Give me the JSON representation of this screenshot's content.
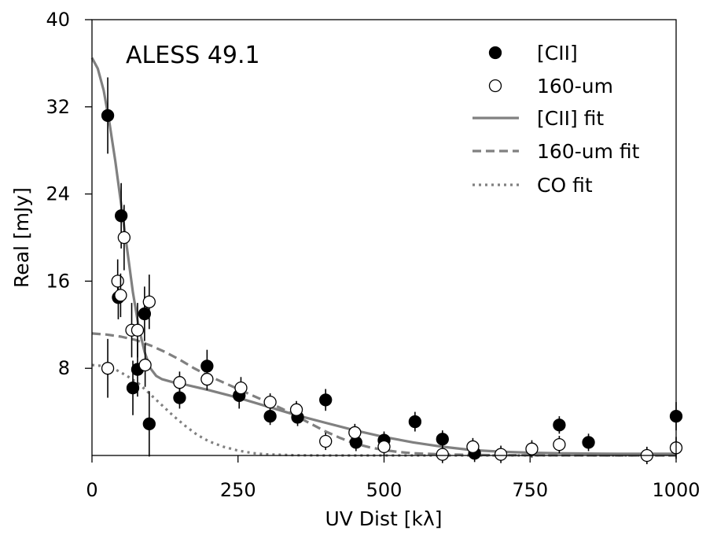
{
  "chart_data": {
    "type": "scatter",
    "annotation": "ALESS 49.1",
    "xlabel": "UV Dist [kλ]",
    "ylabel": "Real [mJy]",
    "xlim": [
      0,
      1000
    ],
    "ylim": [
      0,
      40
    ],
    "xticks": [
      0,
      250,
      500,
      750,
      1000
    ],
    "yticks": [
      8,
      16,
      24,
      32,
      40
    ],
    "legend": {
      "position": "top-right",
      "entries": [
        {
          "label": "[CII]",
          "kind": "filled-marker"
        },
        {
          "label": "160-um",
          "kind": "open-marker"
        },
        {
          "label": "[CII] fit",
          "kind": "solid-line"
        },
        {
          "label": "160-um fit",
          "kind": "dashed-line"
        },
        {
          "label": "CO fit",
          "kind": "dotted-line"
        }
      ]
    },
    "colors": {
      "fit_line": "#808080",
      "marker": "#000000"
    },
    "series": [
      {
        "name": "[CII]",
        "style": "filled",
        "points": [
          {
            "x": 27,
            "y": 31.2,
            "err": 3.5
          },
          {
            "x": 45,
            "y": 14.5,
            "err": 2.0
          },
          {
            "x": 50,
            "y": 22.0,
            "err": 3.0
          },
          {
            "x": 70,
            "y": 6.2,
            "err": 2.5
          },
          {
            "x": 78,
            "y": 7.9,
            "err": 2.5
          },
          {
            "x": 90,
            "y": 13.0,
            "err": 2.5
          },
          {
            "x": 98,
            "y": 2.9,
            "err": 3.0
          },
          {
            "x": 150,
            "y": 5.3,
            "err": 1.0
          },
          {
            "x": 197,
            "y": 8.2,
            "err": 1.5
          },
          {
            "x": 252,
            "y": 5.5,
            "err": 1.2
          },
          {
            "x": 305,
            "y": 3.6,
            "err": 0.8
          },
          {
            "x": 352,
            "y": 3.5,
            "err": 0.8
          },
          {
            "x": 400,
            "y": 5.1,
            "err": 1.0
          },
          {
            "x": 452,
            "y": 1.2,
            "err": 0.8
          },
          {
            "x": 500,
            "y": 1.4,
            "err": 0.8
          },
          {
            "x": 553,
            "y": 3.1,
            "err": 0.9
          },
          {
            "x": 600,
            "y": 1.5,
            "err": 0.8
          },
          {
            "x": 655,
            "y": 0.2,
            "err": 0.8
          },
          {
            "x": 800,
            "y": 2.8,
            "err": 0.8
          },
          {
            "x": 850,
            "y": 1.2,
            "err": 0.8
          },
          {
            "x": 1000,
            "y": 3.6,
            "err": 1.3
          }
        ]
      },
      {
        "name": "160-um",
        "style": "open",
        "points": [
          {
            "x": 27,
            "y": 8.0,
            "err": 2.7
          },
          {
            "x": 44,
            "y": 16.0,
            "err": 2.0
          },
          {
            "x": 49,
            "y": 14.7,
            "err": 2.0
          },
          {
            "x": 55,
            "y": 20.0,
            "err": 3.0
          },
          {
            "x": 68,
            "y": 11.5,
            "err": 2.5
          },
          {
            "x": 78,
            "y": 11.5,
            "err": 2.5
          },
          {
            "x": 91,
            "y": 8.3,
            "err": 2.0
          },
          {
            "x": 98,
            "y": 14.1,
            "err": 2.5
          },
          {
            "x": 150,
            "y": 6.7,
            "err": 1.0
          },
          {
            "x": 197,
            "y": 7.0,
            "err": 1.0
          },
          {
            "x": 255,
            "y": 6.2,
            "err": 1.0
          },
          {
            "x": 305,
            "y": 4.9,
            "err": 0.8
          },
          {
            "x": 350,
            "y": 4.2,
            "err": 0.8
          },
          {
            "x": 400,
            "y": 1.3,
            "err": 0.8
          },
          {
            "x": 450,
            "y": 2.1,
            "err": 0.8
          },
          {
            "x": 500,
            "y": 0.8,
            "err": 0.8
          },
          {
            "x": 600,
            "y": 0.1,
            "err": 0.8
          },
          {
            "x": 652,
            "y": 0.8,
            "err": 0.8
          },
          {
            "x": 700,
            "y": 0.1,
            "err": 0.8
          },
          {
            "x": 753,
            "y": 0.6,
            "err": 0.8
          },
          {
            "x": 800,
            "y": 1.0,
            "err": 0.8
          },
          {
            "x": 950,
            "y": 0.0,
            "err": 0.8
          },
          {
            "x": 1000,
            "y": 0.7,
            "err": 1.0
          }
        ]
      }
    ],
    "fits": [
      {
        "name": "[CII] fit",
        "style": "solid",
        "x": [
          0,
          10,
          20,
          30,
          40,
          50,
          60,
          70,
          80,
          90,
          100,
          110,
          120,
          140,
          160,
          200,
          250,
          300,
          350,
          400,
          450,
          500,
          550,
          600,
          650,
          700,
          750,
          800,
          900,
          1000
        ],
        "y": [
          36.5,
          35.5,
          33.5,
          30.5,
          27.0,
          23.0,
          19.0,
          15.0,
          11.8,
          9.5,
          8.0,
          7.3,
          7.0,
          6.7,
          6.5,
          6.0,
          5.3,
          4.5,
          3.7,
          3.0,
          2.3,
          1.7,
          1.2,
          0.8,
          0.5,
          0.35,
          0.25,
          0.2,
          0.15,
          0.15
        ]
      },
      {
        "name": "160-um fit",
        "style": "dashed",
        "x": [
          0,
          25,
          50,
          75,
          100,
          125,
          150,
          175,
          200,
          225,
          250,
          275,
          300,
          325,
          350,
          375,
          400,
          425,
          450,
          475,
          500,
          525,
          550,
          600,
          650,
          700,
          750,
          800,
          900,
          1000
        ],
        "y": [
          11.2,
          11.1,
          10.9,
          10.6,
          10.1,
          9.5,
          8.8,
          8.0,
          7.3,
          6.7,
          6.1,
          5.5,
          4.9,
          4.3,
          3.6,
          2.9,
          2.2,
          1.6,
          1.1,
          0.75,
          0.5,
          0.32,
          0.2,
          0.1,
          0.05,
          0.03,
          0.02,
          0.01,
          0.0,
          0.0
        ]
      },
      {
        "name": "CO fit",
        "style": "dotted",
        "x": [
          0,
          20,
          40,
          60,
          80,
          100,
          120,
          140,
          160,
          180,
          200,
          225,
          250,
          275,
          300,
          350,
          400,
          500,
          600,
          800,
          1000
        ],
        "y": [
          8.3,
          8.2,
          7.9,
          7.3,
          6.6,
          5.6,
          4.6,
          3.6,
          2.7,
          1.9,
          1.3,
          0.8,
          0.45,
          0.22,
          0.1,
          0.02,
          0.0,
          0.0,
          0.0,
          0.0,
          0.0
        ]
      }
    ]
  }
}
